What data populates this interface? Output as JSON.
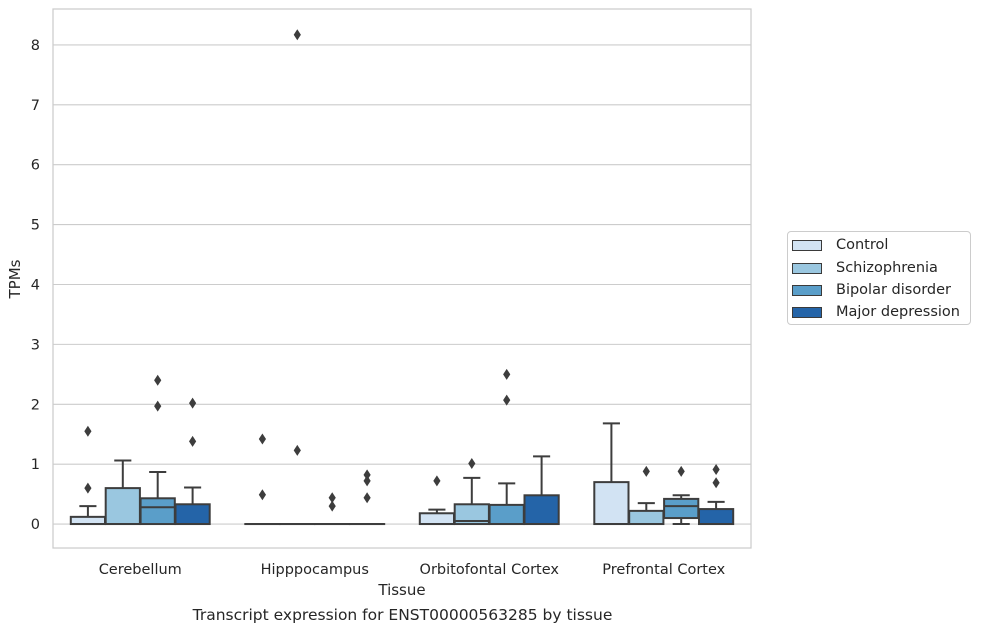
{
  "caption": "Transcript expression for ENST00000563285 by tissue",
  "chart_data": {
    "type": "box",
    "xlabel": "Tissue",
    "ylabel": "TPMs",
    "ylim": [
      -0.4,
      8.6
    ],
    "yticks": [
      0,
      1,
      2,
      3,
      4,
      5,
      6,
      7,
      8
    ],
    "grid": true,
    "legend_position": "right",
    "categories": [
      "Cerebellum",
      "Hipppocampus",
      "Orbitofontal Cortex",
      "Prefrontal Cortex"
    ],
    "series": [
      {
        "name": "Control",
        "color": "#d2e3f3"
      },
      {
        "name": "Schizophrenia",
        "color": "#9ac7e0"
      },
      {
        "name": "Bipolar disorder",
        "color": "#5a9ec9"
      },
      {
        "name": "Major depression",
        "color": "#2464a8"
      }
    ],
    "boxes": [
      [
        {
          "whislo": 0,
          "q1": 0,
          "med": 0.0,
          "q3": 0.12,
          "whishi": 0.3,
          "fliers": [
            0.6,
            1.55
          ]
        },
        {
          "whislo": 0,
          "q1": 0,
          "med": 0.0,
          "q3": 0.6,
          "whishi": 1.06,
          "fliers": []
        },
        {
          "whislo": 0,
          "q1": 0,
          "med": 0.28,
          "q3": 0.43,
          "whishi": 0.87,
          "fliers": [
            1.97,
            2.4
          ]
        },
        {
          "whislo": 0,
          "q1": 0,
          "med": 0.0,
          "q3": 0.33,
          "whishi": 0.61,
          "fliers": [
            1.38,
            2.02
          ]
        }
      ],
      [
        {
          "whislo": 0,
          "q1": 0,
          "med": 0,
          "q3": 0,
          "whishi": 0,
          "fliers": [
            0.49,
            1.42
          ]
        },
        {
          "whislo": 0,
          "q1": 0,
          "med": 0,
          "q3": 0,
          "whishi": 0,
          "fliers": [
            1.23,
            8.17
          ]
        },
        {
          "whislo": 0,
          "q1": 0,
          "med": 0,
          "q3": 0,
          "whishi": 0,
          "fliers": [
            0.3,
            0.44
          ]
        },
        {
          "whislo": 0,
          "q1": 0,
          "med": 0,
          "q3": 0,
          "whishi": 0,
          "fliers": [
            0.44,
            0.72,
            0.82
          ]
        }
      ],
      [
        {
          "whislo": 0,
          "q1": 0,
          "med": 0.0,
          "q3": 0.18,
          "whishi": 0.24,
          "fliers": [
            0.72
          ]
        },
        {
          "whislo": 0,
          "q1": 0,
          "med": 0.05,
          "q3": 0.33,
          "whishi": 0.77,
          "fliers": [
            1.01
          ]
        },
        {
          "whislo": 0,
          "q1": 0,
          "med": 0.0,
          "q3": 0.32,
          "whishi": 0.68,
          "fliers": [
            2.07,
            2.5
          ]
        },
        {
          "whislo": 0,
          "q1": 0,
          "med": 0.0,
          "q3": 0.48,
          "whishi": 1.13,
          "fliers": []
        }
      ],
      [
        {
          "whislo": 0,
          "q1": 0,
          "med": 0.0,
          "q3": 0.7,
          "whishi": 1.68,
          "fliers": []
        },
        {
          "whislo": 0,
          "q1": 0,
          "med": 0.0,
          "q3": 0.22,
          "whishi": 0.35,
          "fliers": [
            0.88
          ]
        },
        {
          "whislo": 0.0,
          "q1": 0.1,
          "med": 0.3,
          "q3": 0.42,
          "whishi": 0.48,
          "fliers": [
            0.88
          ]
        },
        {
          "whislo": 0,
          "q1": 0,
          "med": 0.0,
          "q3": 0.25,
          "whishi": 0.37,
          "fliers": [
            0.69,
            0.91
          ]
        }
      ]
    ]
  }
}
